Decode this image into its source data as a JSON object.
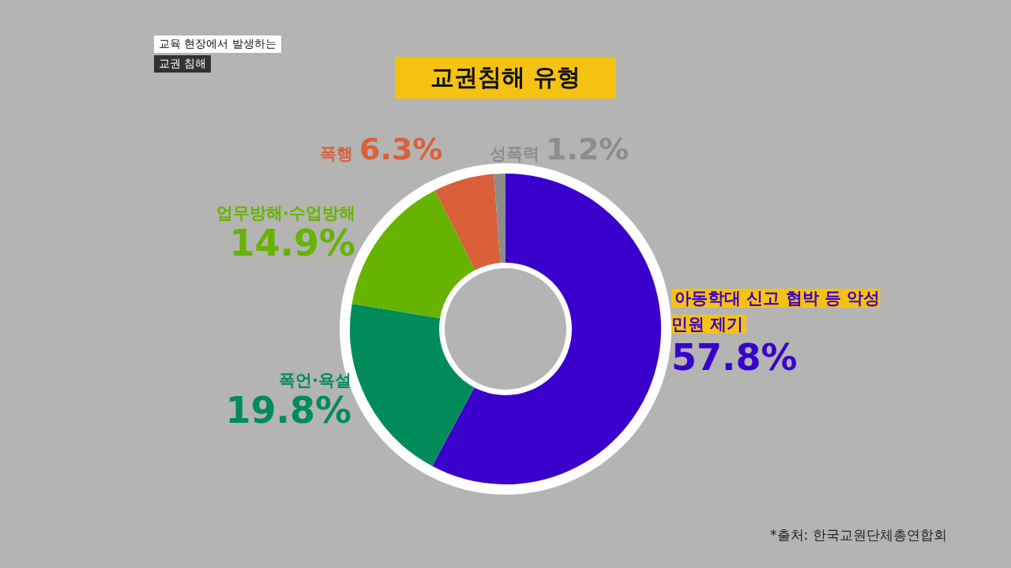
{
  "chart_data": {
    "type": "donut",
    "title": "교권침해 유형",
    "categories": [
      "아동학대 신고 협박 등 악성민원 제기",
      "폭언·욕설",
      "업무방해·수업방해",
      "폭행",
      "성폭력"
    ],
    "values": [
      57.8,
      19.8,
      14.9,
      6.3,
      1.2
    ],
    "colors": [
      "#3a00cc",
      "#008c5a",
      "#66b300",
      "#d9603a",
      "#8c8c8c"
    ],
    "value_labels": [
      "57.8%",
      "19.8%",
      "14.9%",
      "6.3%",
      "1.2%"
    ],
    "legend": false,
    "annotations": [
      "교육 현장에서 발생하는",
      "교권 침해",
      "*출처: 한국교원단체총연합회"
    ]
  }
}
